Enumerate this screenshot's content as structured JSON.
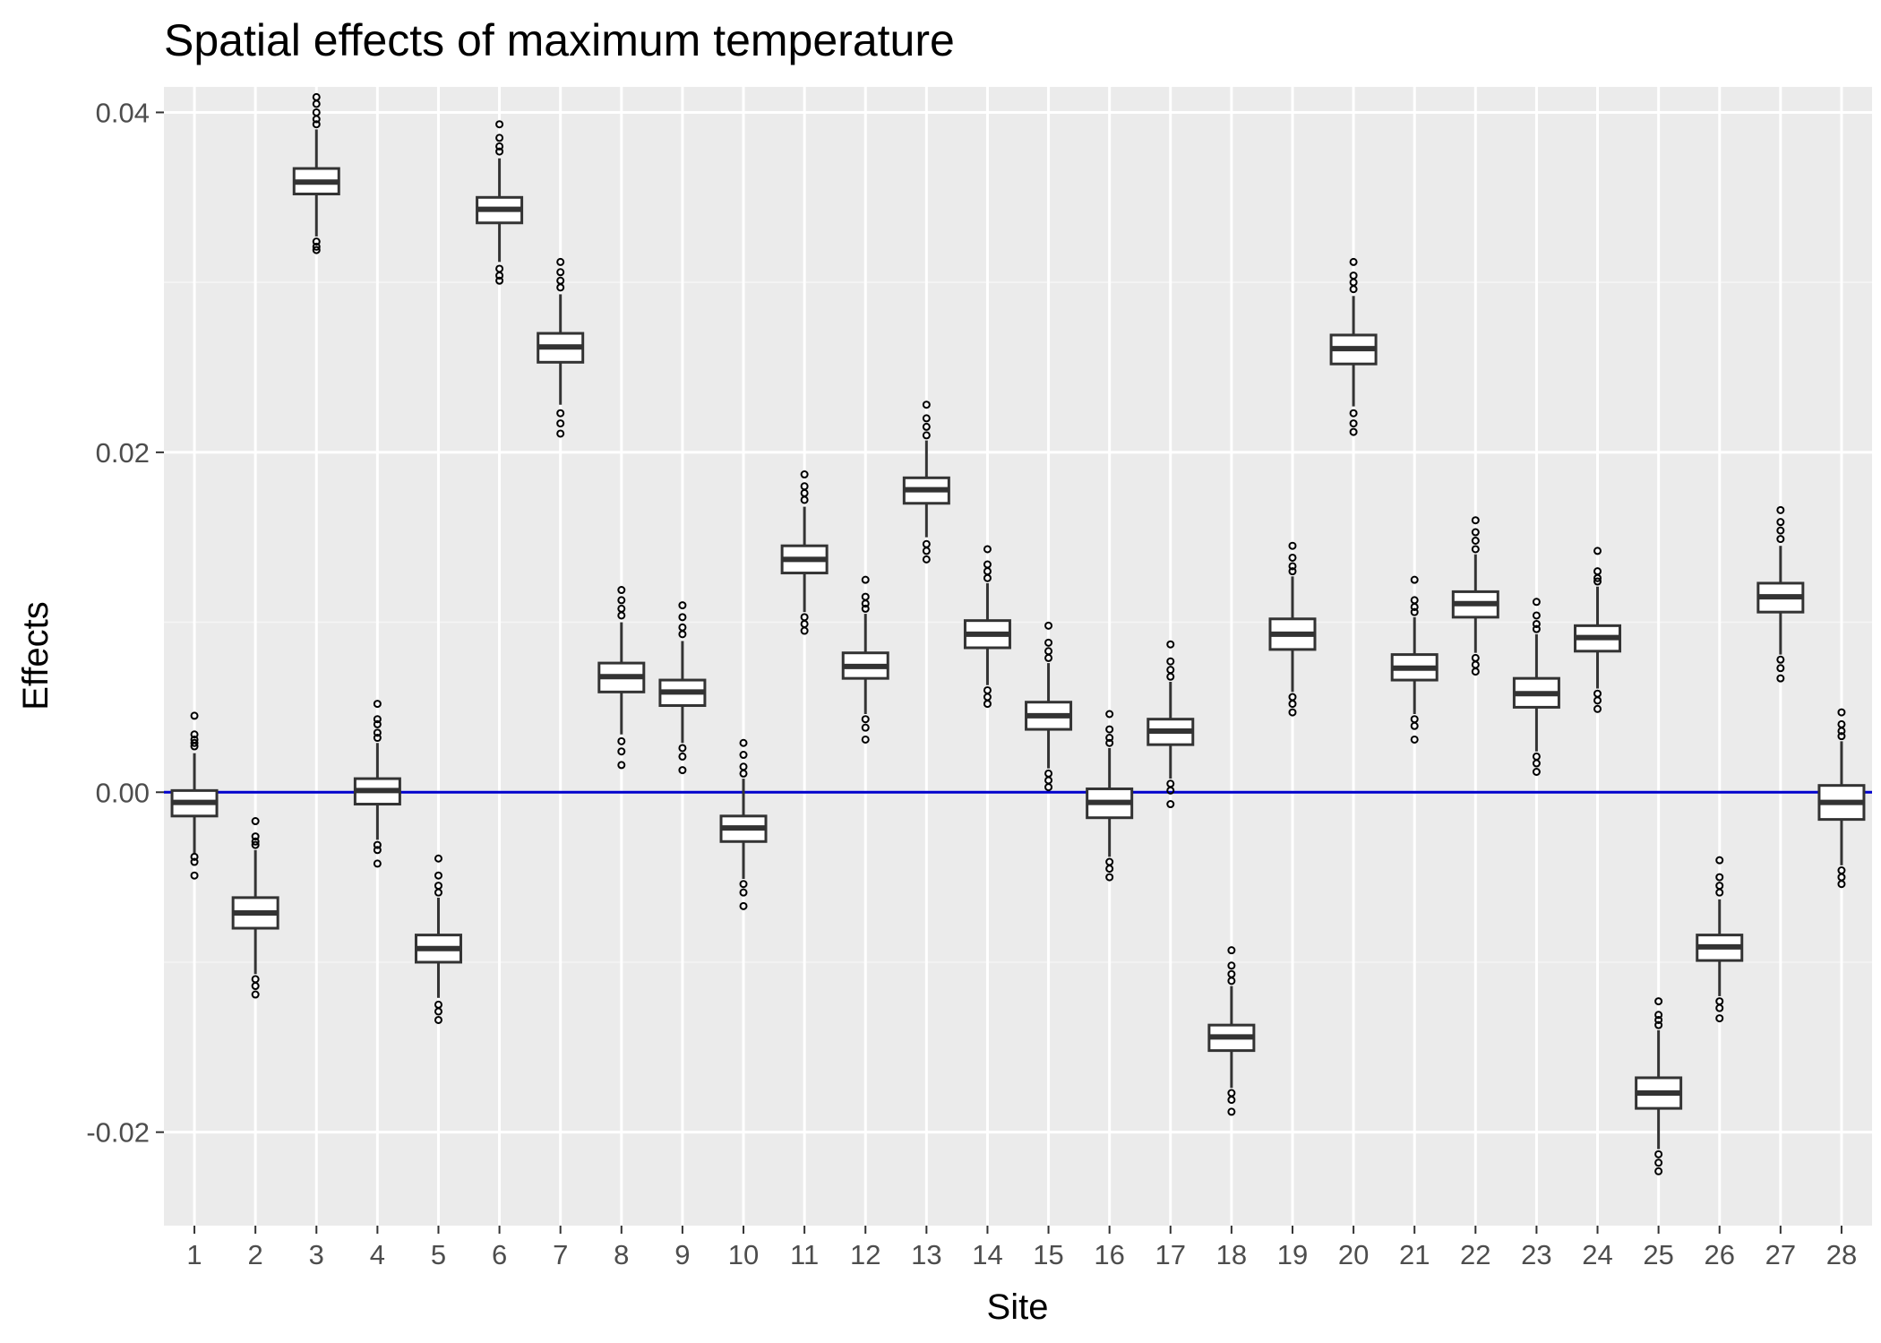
{
  "chart_data": {
    "type": "boxplot",
    "title": "Spatial effects of maximum temperature",
    "xlabel": "Site",
    "ylabel": "Effects",
    "ylim": [
      -0.0255,
      0.0415
    ],
    "yticks": [
      -0.02,
      0.0,
      0.02,
      0.04
    ],
    "ytick_labels": [
      "-0.02",
      "0.00",
      "0.02",
      "0.04"
    ],
    "reference_line": {
      "y": 0,
      "color": "#0000cc"
    },
    "colors": {
      "panel": "#ebebeb",
      "grid_major": "#ffffff",
      "grid_minor": "#f5f5f5",
      "box_line": "#333333",
      "box_fill": "#ffffff"
    },
    "categories": [
      "1",
      "2",
      "3",
      "4",
      "5",
      "6",
      "7",
      "8",
      "9",
      "10",
      "11",
      "12",
      "13",
      "14",
      "15",
      "16",
      "17",
      "18",
      "19",
      "20",
      "21",
      "22",
      "23",
      "24",
      "25",
      "26",
      "27",
      "28"
    ],
    "boxes": [
      {
        "site": "1",
        "q1": -0.0014,
        "median": -0.0006,
        "q3": 0.0001,
        "whisker_low": -0.0036,
        "whisker_high": 0.0023,
        "outliers": [
          0.0045,
          0.0034,
          0.0031,
          0.0029,
          0.0027,
          -0.0038,
          -0.0041,
          -0.0049
        ]
      },
      {
        "site": "2",
        "q1": -0.008,
        "median": -0.0071,
        "q3": -0.0062,
        "whisker_low": -0.0107,
        "whisker_high": -0.0034,
        "outliers": [
          -0.0017,
          -0.0026,
          -0.0029,
          -0.0031,
          -0.011,
          -0.0114,
          -0.0119
        ]
      },
      {
        "site": "3",
        "q1": 0.0352,
        "median": 0.0359,
        "q3": 0.0367,
        "whisker_low": 0.0327,
        "whisker_high": 0.039,
        "outliers": [
          0.0409,
          0.0405,
          0.04,
          0.0396,
          0.0393,
          0.0324,
          0.0321,
          0.0319
        ]
      },
      {
        "site": "4",
        "q1": -0.0007,
        "median": 0.0001,
        "q3": 0.0008,
        "whisker_low": -0.0028,
        "whisker_high": 0.0029,
        "outliers": [
          0.0052,
          0.0043,
          0.004,
          0.0035,
          0.0032,
          -0.0031,
          -0.0034,
          -0.0042
        ]
      },
      {
        "site": "5",
        "q1": -0.01,
        "median": -0.0092,
        "q3": -0.0084,
        "whisker_low": -0.0121,
        "whisker_high": -0.0062,
        "outliers": [
          -0.0039,
          -0.0049,
          -0.0055,
          -0.0059,
          -0.0125,
          -0.0129,
          -0.0134
        ]
      },
      {
        "site": "6",
        "q1": 0.0335,
        "median": 0.0343,
        "q3": 0.035,
        "whisker_low": 0.0312,
        "whisker_high": 0.0373,
        "outliers": [
          0.0393,
          0.0385,
          0.038,
          0.0377,
          0.0308,
          0.0304,
          0.0301
        ]
      },
      {
        "site": "7",
        "q1": 0.0253,
        "median": 0.0262,
        "q3": 0.027,
        "whisker_low": 0.0228,
        "whisker_high": 0.0293,
        "outliers": [
          0.0312,
          0.0306,
          0.0301,
          0.0297,
          0.0223,
          0.0217,
          0.0211
        ]
      },
      {
        "site": "8",
        "q1": 0.0059,
        "median": 0.0068,
        "q3": 0.0076,
        "whisker_low": 0.0034,
        "whisker_high": 0.01,
        "outliers": [
          0.0119,
          0.0113,
          0.0108,
          0.0104,
          0.003,
          0.0024,
          0.0016
        ]
      },
      {
        "site": "9",
        "q1": 0.0051,
        "median": 0.0059,
        "q3": 0.0066,
        "whisker_low": 0.0029,
        "whisker_high": 0.0089,
        "outliers": [
          0.011,
          0.0103,
          0.0097,
          0.0093,
          0.0026,
          0.0021,
          0.0013
        ]
      },
      {
        "site": "10",
        "q1": -0.0029,
        "median": -0.0021,
        "q3": -0.0014,
        "whisker_low": -0.0051,
        "whisker_high": 0.0008,
        "outliers": [
          0.0029,
          0.0022,
          0.0015,
          0.0011,
          -0.0054,
          -0.0059,
          -0.0067
        ]
      },
      {
        "site": "11",
        "q1": 0.0129,
        "median": 0.0137,
        "q3": 0.0145,
        "whisker_low": 0.0106,
        "whisker_high": 0.0168,
        "outliers": [
          0.0187,
          0.018,
          0.0176,
          0.0172,
          0.0103,
          0.0099,
          0.0095
        ]
      },
      {
        "site": "12",
        "q1": 0.0067,
        "median": 0.0074,
        "q3": 0.0082,
        "whisker_low": 0.0046,
        "whisker_high": 0.0105,
        "outliers": [
          0.0125,
          0.0115,
          0.0111,
          0.0108,
          0.0043,
          0.0038,
          0.0031
        ]
      },
      {
        "site": "13",
        "q1": 0.017,
        "median": 0.0178,
        "q3": 0.0185,
        "whisker_low": 0.015,
        "whisker_high": 0.0207,
        "outliers": [
          0.0228,
          0.022,
          0.0215,
          0.021,
          0.0146,
          0.0142,
          0.0137
        ]
      },
      {
        "site": "14",
        "q1": 0.0085,
        "median": 0.0093,
        "q3": 0.0101,
        "whisker_low": 0.0063,
        "whisker_high": 0.0123,
        "outliers": [
          0.0143,
          0.0134,
          0.013,
          0.0126,
          0.006,
          0.0056,
          0.0052
        ]
      },
      {
        "site": "15",
        "q1": 0.0037,
        "median": 0.0045,
        "q3": 0.0053,
        "whisker_low": 0.0014,
        "whisker_high": 0.0076,
        "outliers": [
          0.0098,
          0.0088,
          0.0083,
          0.0079,
          0.0011,
          0.0007,
          0.0003
        ]
      },
      {
        "site": "16",
        "q1": -0.0015,
        "median": -0.0006,
        "q3": 0.0002,
        "whisker_low": -0.0038,
        "whisker_high": 0.0026,
        "outliers": [
          0.0046,
          0.0037,
          0.0032,
          0.0029,
          -0.0041,
          -0.0045,
          -0.005
        ]
      },
      {
        "site": "17",
        "q1": 0.0028,
        "median": 0.0036,
        "q3": 0.0043,
        "whisker_low": 0.0008,
        "whisker_high": 0.0065,
        "outliers": [
          0.0087,
          0.0077,
          0.0072,
          0.0068,
          0.0005,
          0.0001,
          -0.0007
        ]
      },
      {
        "site": "18",
        "q1": -0.0152,
        "median": -0.0144,
        "q3": -0.0137,
        "whisker_low": -0.0174,
        "whisker_high": -0.0114,
        "outliers": [
          -0.0093,
          -0.0102,
          -0.0107,
          -0.0111,
          -0.0177,
          -0.0181,
          -0.0188
        ]
      },
      {
        "site": "19",
        "q1": 0.0084,
        "median": 0.0093,
        "q3": 0.0102,
        "whisker_low": 0.0059,
        "whisker_high": 0.0127,
        "outliers": [
          0.0145,
          0.0138,
          0.0133,
          0.013,
          0.0056,
          0.0052,
          0.0047
        ]
      },
      {
        "site": "20",
        "q1": 0.0252,
        "median": 0.0261,
        "q3": 0.0269,
        "whisker_low": 0.0227,
        "whisker_high": 0.0292,
        "outliers": [
          0.0312,
          0.0304,
          0.03,
          0.0296,
          0.0223,
          0.0217,
          0.0212
        ]
      },
      {
        "site": "21",
        "q1": 0.0066,
        "median": 0.0073,
        "q3": 0.0081,
        "whisker_low": 0.0046,
        "whisker_high": 0.0103,
        "outliers": [
          0.0125,
          0.0113,
          0.0109,
          0.0106,
          0.0043,
          0.0039,
          0.0031
        ]
      },
      {
        "site": "22",
        "q1": 0.0103,
        "median": 0.0111,
        "q3": 0.0118,
        "whisker_low": 0.0082,
        "whisker_high": 0.014,
        "outliers": [
          0.016,
          0.0153,
          0.0148,
          0.0143,
          0.0079,
          0.0075,
          0.0071
        ]
      },
      {
        "site": "23",
        "q1": 0.005,
        "median": 0.0058,
        "q3": 0.0067,
        "whisker_low": 0.0024,
        "whisker_high": 0.0093,
        "outliers": [
          0.0112,
          0.0104,
          0.0099,
          0.0096,
          0.0021,
          0.0017,
          0.0012
        ]
      },
      {
        "site": "24",
        "q1": 0.0083,
        "median": 0.0091,
        "q3": 0.0098,
        "whisker_low": 0.0061,
        "whisker_high": 0.0121,
        "outliers": [
          0.0142,
          0.013,
          0.0126,
          0.0124,
          0.0058,
          0.0054,
          0.0049
        ]
      },
      {
        "site": "25",
        "q1": -0.0186,
        "median": -0.0177,
        "q3": -0.0168,
        "whisker_low": -0.021,
        "whisker_high": -0.014,
        "outliers": [
          -0.0123,
          -0.0131,
          -0.0134,
          -0.0137,
          -0.0213,
          -0.0218,
          -0.0223
        ]
      },
      {
        "site": "26",
        "q1": -0.0099,
        "median": -0.0091,
        "q3": -0.0084,
        "whisker_low": -0.012,
        "whisker_high": -0.0063,
        "outliers": [
          -0.004,
          -0.005,
          -0.0055,
          -0.0059,
          -0.0123,
          -0.0127,
          -0.0133
        ]
      },
      {
        "site": "27",
        "q1": 0.0106,
        "median": 0.0115,
        "q3": 0.0123,
        "whisker_low": 0.0081,
        "whisker_high": 0.0145,
        "outliers": [
          0.0166,
          0.0159,
          0.0154,
          0.0149,
          0.0078,
          0.0073,
          0.0067
        ]
      },
      {
        "site": "28",
        "q1": -0.0016,
        "median": -0.0006,
        "q3": 0.0004,
        "whisker_low": -0.0043,
        "whisker_high": 0.003,
        "outliers": [
          0.0047,
          0.004,
          0.0036,
          0.0033,
          -0.0046,
          -0.005,
          -0.0054
        ]
      }
    ]
  }
}
